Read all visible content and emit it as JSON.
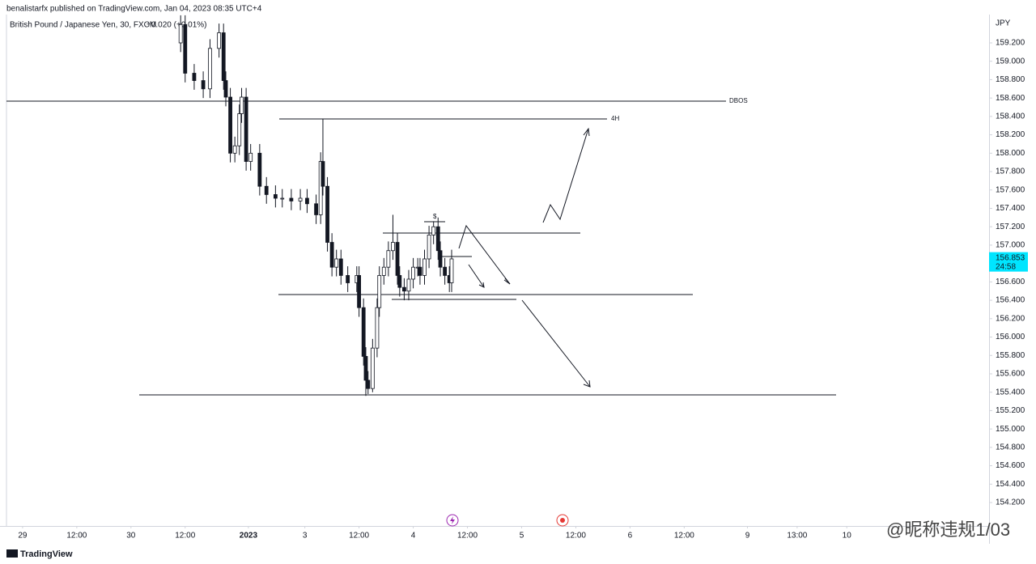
{
  "header": {
    "publisher": "benalistarfx published on TradingView.com, Jan 04, 2023 08:35 UTC+4",
    "symbol": "British Pound / Japanese Yen, 30, FXCM",
    "change": "+0.020 (+0.01%)"
  },
  "chart_data": {
    "type": "candlestick",
    "axis_unit": "JPY",
    "up_color": "#ffffff",
    "down_color": "#131722",
    "x": [
      70,
      72,
      76,
      80,
      83,
      87,
      89,
      90,
      92,
      94,
      96,
      97,
      99,
      101,
      105,
      108,
      112,
      115,
      119,
      123,
      126,
      130,
      132,
      133,
      135,
      137,
      139,
      141,
      144,
      148,
      149,
      151,
      152,
      153,
      155,
      157,
      158,
      160,
      162,
      164,
      166,
      167,
      169,
      171,
      173,
      175,
      176,
      178,
      180,
      182,
      184,
      185,
      187,
      189,
      190
    ],
    "open": [
      159.2,
      159.4,
      158.87,
      158.79,
      158.7,
      159.14,
      159.31,
      158.79,
      158.61,
      158.0,
      158.08,
      158.43,
      158.61,
      157.91,
      158.0,
      157.64,
      157.55,
      157.51,
      157.51,
      157.48,
      157.51,
      157.45,
      157.33,
      157.91,
      157.64,
      157.03,
      156.76,
      156.85,
      156.67,
      156.59,
      156.67,
      156.32,
      155.79,
      155.53,
      155.44,
      155.88,
      156.32,
      156.67,
      156.76,
      156.94,
      157.03,
      156.67,
      156.54,
      156.5,
      156.63,
      156.76,
      156.76,
      156.67,
      156.85,
      157.11,
      157.2,
      156.94,
      156.76,
      156.67,
      156.59
    ],
    "high": [
      159.5,
      159.5,
      158.97,
      158.89,
      159.24,
      159.41,
      159.41,
      158.89,
      158.71,
      158.18,
      158.53,
      158.71,
      158.71,
      158.1,
      158.1,
      157.74,
      157.65,
      157.61,
      157.61,
      157.61,
      157.61,
      157.55,
      158.01,
      158.37,
      157.74,
      157.13,
      156.95,
      156.95,
      156.77,
      156.77,
      156.77,
      156.42,
      155.89,
      155.63,
      155.98,
      156.42,
      156.77,
      156.86,
      157.04,
      157.33,
      157.13,
      156.77,
      156.64,
      156.73,
      156.86,
      156.86,
      156.86,
      156.95,
      157.21,
      157.26,
      157.3,
      157.04,
      156.86,
      156.77,
      156.95
    ],
    "low": [
      159.1,
      158.77,
      158.69,
      158.6,
      158.6,
      159.04,
      158.69,
      158.51,
      157.9,
      157.9,
      157.98,
      158.33,
      157.81,
      157.81,
      157.54,
      157.45,
      157.41,
      157.41,
      157.38,
      157.38,
      157.35,
      157.23,
      157.23,
      157.54,
      156.93,
      156.66,
      156.66,
      156.57,
      156.49,
      156.49,
      156.22,
      155.69,
      155.36,
      155.38,
      155.4,
      155.78,
      156.22,
      156.57,
      156.66,
      156.84,
      156.57,
      156.44,
      156.4,
      156.4,
      156.53,
      156.66,
      156.57,
      156.57,
      156.75,
      157.01,
      156.84,
      156.66,
      156.57,
      156.49,
      156.49
    ],
    "close": [
      159.4,
      158.87,
      158.79,
      158.7,
      159.14,
      159.31,
      158.79,
      158.61,
      158.0,
      158.08,
      158.43,
      158.61,
      157.91,
      158.0,
      157.64,
      157.55,
      157.51,
      157.51,
      157.48,
      157.51,
      157.45,
      157.33,
      157.91,
      157.64,
      157.03,
      156.76,
      156.85,
      156.67,
      156.59,
      156.67,
      156.32,
      155.79,
      155.53,
      155.44,
      155.88,
      156.32,
      156.67,
      156.76,
      156.94,
      157.03,
      156.67,
      156.54,
      156.5,
      156.63,
      156.76,
      156.76,
      156.67,
      156.85,
      157.11,
      157.2,
      156.94,
      156.76,
      156.67,
      156.59,
      156.85
    ],
    "xlim": [
      -10,
      428
    ],
    "xticks": [
      {
        "value": 0,
        "label": "29"
      },
      {
        "value": 24,
        "label": "12:00"
      },
      {
        "value": 48,
        "label": "30"
      },
      {
        "value": 72,
        "label": "12:00"
      },
      {
        "value": 100,
        "label": "2023"
      },
      {
        "value": 125,
        "label": "3"
      },
      {
        "value": 149,
        "label": "12:00"
      },
      {
        "value": 173,
        "label": "4"
      },
      {
        "value": 197,
        "label": "12:00"
      },
      {
        "value": 221,
        "label": "5"
      },
      {
        "value": 245,
        "label": "12:00"
      },
      {
        "value": 269,
        "label": "6"
      },
      {
        "value": 293,
        "label": "12:00"
      },
      {
        "value": 321,
        "label": "9"
      },
      {
        "value": 343,
        "label": "13:00"
      },
      {
        "value": 365,
        "label": "10"
      }
    ],
    "ylim": [
      153.945,
      159.508
    ],
    "yticks": [
      {
        "value": 159.2,
        "label": "159.200"
      },
      {
        "value": 159.0,
        "label": "159.000"
      },
      {
        "value": 158.8,
        "label": "158.800"
      },
      {
        "value": 158.6,
        "label": "158.600"
      },
      {
        "value": 158.4,
        "label": "158.400"
      },
      {
        "value": 158.2,
        "label": "158.200"
      },
      {
        "value": 158.0,
        "label": "158.000"
      },
      {
        "value": 157.8,
        "label": "157.800"
      },
      {
        "value": 157.6,
        "label": "157.600"
      },
      {
        "value": 157.4,
        "label": "157.400"
      },
      {
        "value": 157.2,
        "label": "157.200"
      },
      {
        "value": 157.0,
        "label": "157.000"
      },
      {
        "value": 156.8,
        "label": "156.800"
      },
      {
        "value": 156.6,
        "label": "156.600"
      },
      {
        "value": 156.4,
        "label": "156.400"
      },
      {
        "value": 156.2,
        "label": "156.200"
      },
      {
        "value": 156.0,
        "label": "156.000"
      },
      {
        "value": 155.8,
        "label": "155.800"
      },
      {
        "value": 155.6,
        "label": "155.600"
      },
      {
        "value": 155.4,
        "label": "155.400"
      },
      {
        "value": 155.2,
        "label": "155.200"
      },
      {
        "value": 155.0,
        "label": "155.000"
      },
      {
        "value": 154.8,
        "label": "154.800"
      },
      {
        "value": 154.6,
        "label": "154.600"
      },
      {
        "value": 154.4,
        "label": "154.400"
      },
      {
        "value": 154.2,
        "label": "154.200"
      }
    ],
    "last_price": {
      "value": 156.853,
      "label": "156.853"
    },
    "countdown": "24:58",
    "annotations": {
      "dbos": "DBOS",
      "h4": "4H",
      "liquidity": "$"
    }
  },
  "footer": {
    "brand": "TradingView",
    "watermark": "@昵称违规1/03"
  }
}
